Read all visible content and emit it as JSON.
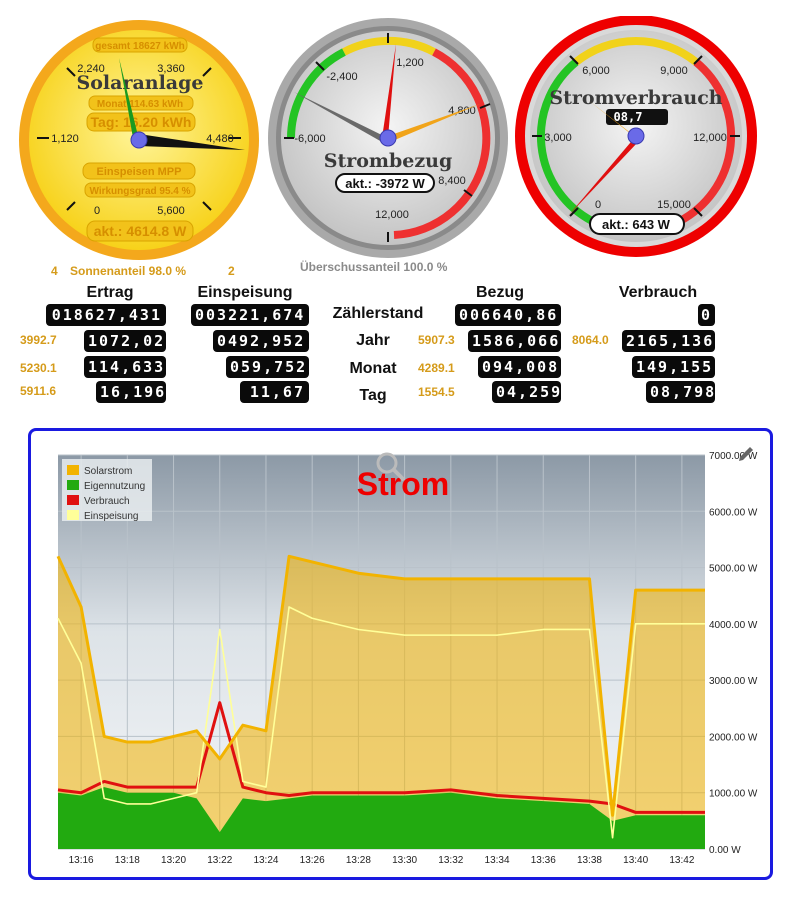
{
  "gauge_solar": {
    "title": "Solaranlage",
    "gesamt": "gesamt 18627 kWh",
    "monat": "Monat 114.63 kWh",
    "tag": "Tag: 16.20 kWh",
    "einspeisen": "Einspeisen MPP",
    "wirkungsgrad": "Wirkungsgrad 95.4 %",
    "akt": "akt.: 4614.8 W",
    "ticks": [
      "2,240",
      "3,360",
      "1,120",
      "4,480",
      "0",
      "5,600"
    ]
  },
  "gauge_bezug": {
    "title": "Strombezug",
    "akt": "akt.: -3972 W",
    "ticks": [
      "-2,400",
      "1,200",
      "-6,000",
      "4,800",
      "8,400",
      "12,000"
    ]
  },
  "gauge_verbrauch": {
    "title": "Stromverbrauch",
    "counter": "08,7",
    "akt": "akt.: 643 W",
    "ticks": [
      "6,000",
      "9,000",
      "3,000",
      "12,000",
      "0",
      "15,000"
    ]
  },
  "summary": {
    "sonnenanteil_prefix": "4",
    "sonnenanteil": "Sonnenanteil 98.0 %",
    "sonnenanteil_suffix": "2",
    "ueberschuss": "Überschussanteil 100.0 %"
  },
  "table": {
    "headers": {
      "ertrag": "Ertrag",
      "einspeisung": "Einspeisung",
      "bezug": "Bezug",
      "verbrauch": "Verbrauch"
    },
    "rows": [
      {
        "label": "Zählerstand",
        "ertrag_side": "",
        "ertrag": "018627,431",
        "einspeisung": "003221,674",
        "bezug_side": "",
        "bezug": "006640,86",
        "verbrauch_side": "",
        "verbrauch": "0"
      },
      {
        "label": "Jahr",
        "ertrag_side": "3992.7",
        "ertrag": "1072,021",
        "einspeisung": "0492,952",
        "bezug_side": "5907.3",
        "bezug": "1586,066",
        "verbrauch_side": "8064.0",
        "verbrauch": "2165,136"
      },
      {
        "label": "Monat",
        "ertrag_side": "5230.1",
        "ertrag": "114,633",
        "einspeisung": "059,752",
        "bezug_side": "4289.1",
        "bezug": "094,008",
        "verbrauch_side": "",
        "verbrauch": "149,155"
      },
      {
        "label": "Tag",
        "ertrag_side": "5911.6",
        "ertrag": "16,196",
        "einspeisung": "11,67",
        "bezug_side": "1554.5",
        "bezug": "04,259",
        "verbrauch_side": "",
        "verbrauch": "08,798"
      }
    ]
  },
  "chart_data": {
    "type": "area",
    "title": "Strom",
    "x": [
      "13:15",
      "13:16",
      "13:17",
      "13:18",
      "13:19",
      "13:20",
      "13:21",
      "13:22",
      "13:23",
      "13:24",
      "13:25",
      "13:26",
      "13:28",
      "13:30",
      "13:32",
      "13:34",
      "13:36",
      "13:38",
      "13:39",
      "13:40",
      "13:42",
      "13:43"
    ],
    "xticks": [
      "13:16",
      "13:18",
      "13:20",
      "13:22",
      "13:24",
      "13:26",
      "13:28",
      "13:30",
      "13:32",
      "13:34",
      "13:36",
      "13:38",
      "13:40",
      "13:42"
    ],
    "yticks": [
      "0.00 W",
      "1000.00 W",
      "2000.00 W",
      "3000.00 W",
      "4000.00 W",
      "5000.00 W",
      "6000.00 W",
      "7000.00 W"
    ],
    "ylim": [
      0,
      7000
    ],
    "legend_position": "top-left",
    "series": [
      {
        "name": "Solarstrom",
        "color": "#f2b300",
        "values": [
          5200,
          4300,
          2000,
          1900,
          1900,
          2000,
          2100,
          1600,
          2200,
          2100,
          5200,
          5100,
          4900,
          4800,
          4800,
          4800,
          4800,
          4800,
          600,
          4600,
          4600,
          4600
        ]
      },
      {
        "name": "Eigennutzung",
        "color": "#22aa10",
        "values": [
          1000,
          950,
          1100,
          1000,
          1000,
          1000,
          900,
          300,
          900,
          850,
          900,
          950,
          950,
          950,
          1000,
          900,
          850,
          800,
          500,
          600,
          600,
          600
        ]
      },
      {
        "name": "Verbrauch",
        "color": "#e01010",
        "values": [
          1050,
          1000,
          1200,
          1100,
          1100,
          1100,
          1100,
          2600,
          1100,
          1000,
          950,
          1000,
          1000,
          1000,
          1050,
          950,
          900,
          850,
          800,
          650,
          650,
          650
        ]
      },
      {
        "name": "Einspeisung",
        "color": "#ffff99",
        "values": [
          4100,
          3300,
          900,
          800,
          800,
          900,
          1000,
          3900,
          1200,
          1100,
          4300,
          4100,
          3900,
          3800,
          3800,
          3800,
          3900,
          3900,
          200,
          4000,
          4000,
          4000
        ]
      }
    ]
  }
}
